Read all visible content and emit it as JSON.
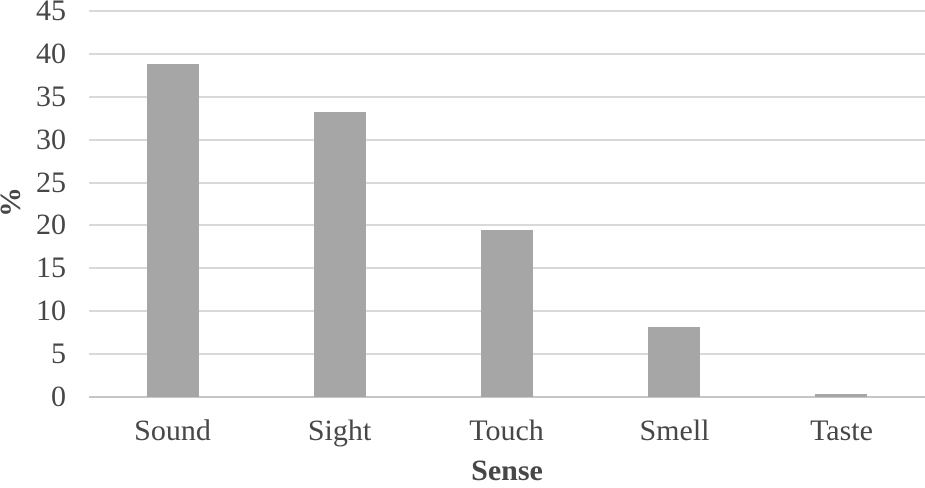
{
  "chart_data": {
    "type": "bar",
    "categories": [
      "Sound",
      "Sight",
      "Touch",
      "Smell",
      "Taste"
    ],
    "values": [
      38.8,
      33.2,
      19.5,
      8.2,
      0.3
    ],
    "title": "",
    "xlabel": "Sense",
    "ylabel": "%",
    "ylim": [
      0,
      45
    ],
    "ytick_step": 5,
    "ytick_labels": [
      "0",
      "5",
      "10",
      "15",
      "20",
      "25",
      "30",
      "35",
      "40",
      "45"
    ],
    "grid": true,
    "legend": false,
    "bar_color": "#a6a6a6",
    "gridline_color": "#d9d9d9",
    "axis_line_color": "#c6c6c6",
    "text_color": "#474747",
    "background_color": "#ffffff"
  }
}
